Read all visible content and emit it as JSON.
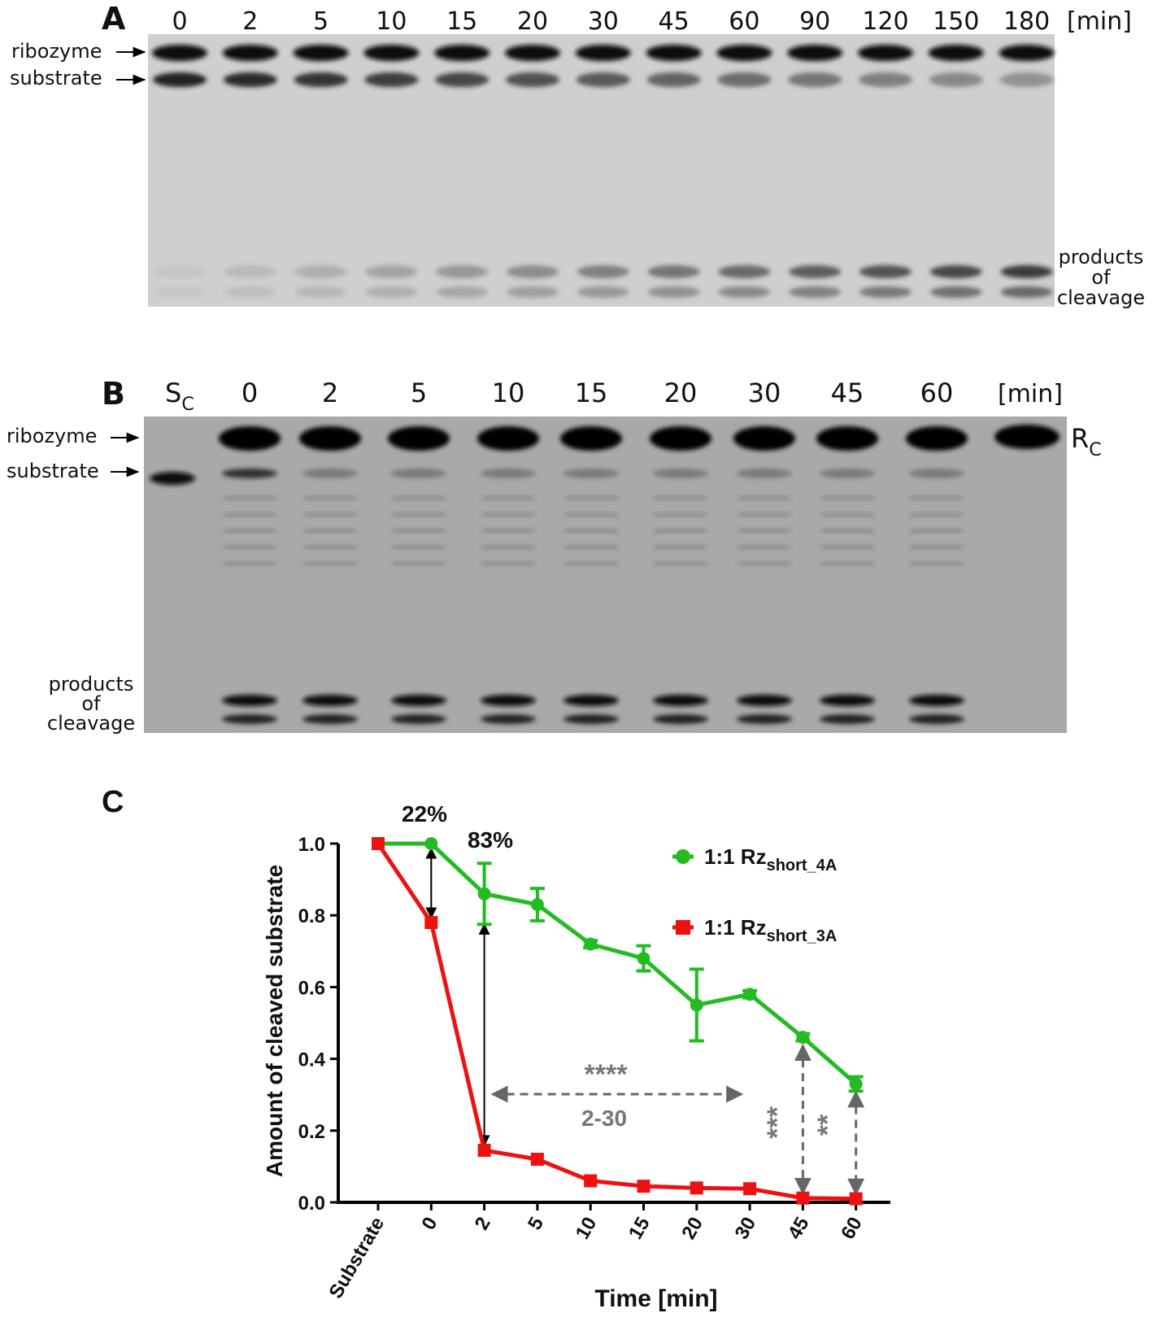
{
  "panel_a": {
    "label": "A",
    "lanes": [
      "0",
      "2",
      "5",
      "10",
      "15",
      "20",
      "30",
      "45",
      "60",
      "90",
      "120",
      "150",
      "180"
    ],
    "unit": "[min]",
    "ribozyme": "ribozyme",
    "substrate": "substrate",
    "products": [
      "products",
      "of",
      "cleavage"
    ]
  },
  "panel_b": {
    "label": "B",
    "control_substrate": {
      "main": "S",
      "sub": "C"
    },
    "lanes": [
      "0",
      "2",
      "5",
      "10",
      "15",
      "20",
      "30",
      "45",
      "60"
    ],
    "unit": "[min]",
    "control_ribozyme": {
      "main": "R",
      "sub": "C"
    },
    "ribozyme": "ribozyme",
    "substrate": "substrate",
    "products": [
      "products",
      "of",
      "cleavage"
    ]
  },
  "chart_data": {
    "type": "line",
    "label": "C",
    "categories": [
      "Substrate",
      "0",
      "2",
      "5",
      "10",
      "15",
      "20",
      "30",
      "45",
      "60"
    ],
    "xlabel": "Time [min]",
    "ylabel": "Amount of cleaved substrate",
    "ylim": [
      0,
      1
    ],
    "yticks": [
      {
        "value": 0,
        "label": "0.0"
      },
      0.2,
      0.4,
      0.6,
      0.8,
      {
        "value": 1,
        "label": "1.0"
      }
    ],
    "series": [
      {
        "name": "1:1 Rz",
        "name_subscript": "short_4A",
        "color": "#22bb22",
        "marker": "circle",
        "values": [
          1.0,
          1.0,
          0.86,
          0.83,
          0.72,
          0.68,
          0.55,
          0.58,
          0.46,
          0.33
        ],
        "errors": [
          null,
          null,
          0.085,
          0.045,
          0.01,
          0.035,
          0.1,
          0.01,
          0.01,
          0.02
        ]
      },
      {
        "name": "1:1 Rz",
        "name_subscript": "short_3A",
        "color": "#ee1111",
        "marker": "square",
        "values": [
          1.0,
          0.78,
          0.145,
          0.12,
          0.06,
          0.045,
          0.04,
          0.038,
          0.012,
          0.01
        ]
      }
    ],
    "annotations": [
      "22%",
      "83%",
      "****",
      "2-30",
      "***",
      "**"
    ]
  }
}
